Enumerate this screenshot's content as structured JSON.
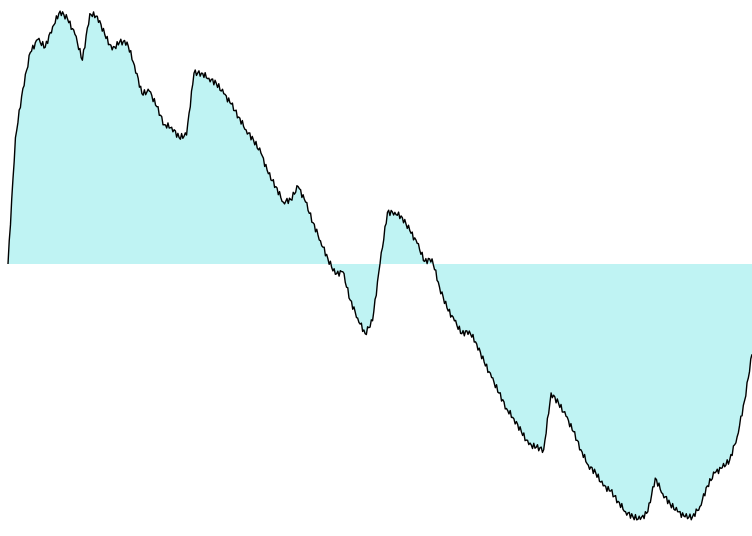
{
  "chart_data": {
    "type": "area",
    "title": "",
    "xlabel": "",
    "ylabel": "",
    "grid": false,
    "legend": "none",
    "baseline": 0,
    "x_range": [
      0,
      1
    ],
    "y_range": [
      -1,
      1
    ],
    "fill_color": "#bff3f3",
    "line_color": "#000000",
    "series": [
      {
        "x": [
          0.0,
          0.01,
          0.02,
          0.03,
          0.04,
          0.05,
          0.06,
          0.07,
          0.08,
          0.09,
          0.1,
          0.11,
          0.12,
          0.13,
          0.14,
          0.15,
          0.16,
          0.17,
          0.18,
          0.19,
          0.2,
          0.21,
          0.22,
          0.23,
          0.24,
          0.25,
          0.26,
          0.27,
          0.28,
          0.29,
          0.3,
          0.31,
          0.32,
          0.33,
          0.34,
          0.35,
          0.36,
          0.37,
          0.38,
          0.39,
          0.4,
          0.41,
          0.42,
          0.43,
          0.44,
          0.45,
          0.46,
          0.47,
          0.48,
          0.49,
          0.5,
          0.51,
          0.52,
          0.53,
          0.54,
          0.55,
          0.56,
          0.57,
          0.58,
          0.59,
          0.6,
          0.61,
          0.62,
          0.63,
          0.64,
          0.65,
          0.66,
          0.67,
          0.68,
          0.69,
          0.7,
          0.71,
          0.72,
          0.73,
          0.74,
          0.75,
          0.76,
          0.77,
          0.78,
          0.79,
          0.8,
          0.81,
          0.82,
          0.83,
          0.84,
          0.85,
          0.86,
          0.87,
          0.88,
          0.89,
          0.9,
          0.91,
          0.92,
          0.93,
          0.94,
          0.95,
          0.96,
          0.97,
          0.98,
          0.99,
          1.0
        ],
        "y": [
          0.0,
          0.49,
          0.68,
          0.82,
          0.87,
          0.84,
          0.92,
          0.98,
          0.95,
          0.89,
          0.79,
          0.97,
          0.96,
          0.89,
          0.83,
          0.86,
          0.86,
          0.77,
          0.66,
          0.67,
          0.61,
          0.54,
          0.53,
          0.49,
          0.5,
          0.74,
          0.74,
          0.72,
          0.7,
          0.66,
          0.62,
          0.57,
          0.52,
          0.48,
          0.43,
          0.35,
          0.3,
          0.24,
          0.25,
          0.3,
          0.24,
          0.16,
          0.09,
          0.02,
          -0.04,
          -0.03,
          -0.14,
          -0.21,
          -0.27,
          -0.22,
          0.0,
          0.2,
          0.2,
          0.18,
          0.13,
          0.08,
          0.01,
          0.02,
          -0.09,
          -0.17,
          -0.22,
          -0.27,
          -0.26,
          -0.31,
          -0.38,
          -0.44,
          -0.5,
          -0.56,
          -0.6,
          -0.65,
          -0.7,
          -0.71,
          -0.72,
          -0.5,
          -0.54,
          -0.59,
          -0.65,
          -0.72,
          -0.78,
          -0.81,
          -0.86,
          -0.88,
          -0.92,
          -0.96,
          -0.98,
          -0.99,
          -0.96,
          -0.83,
          -0.89,
          -0.93,
          -0.96,
          -0.98,
          -0.98,
          -0.94,
          -0.86,
          -0.81,
          -0.79,
          -0.76,
          -0.67,
          -0.53,
          -0.35
        ]
      }
    ]
  }
}
